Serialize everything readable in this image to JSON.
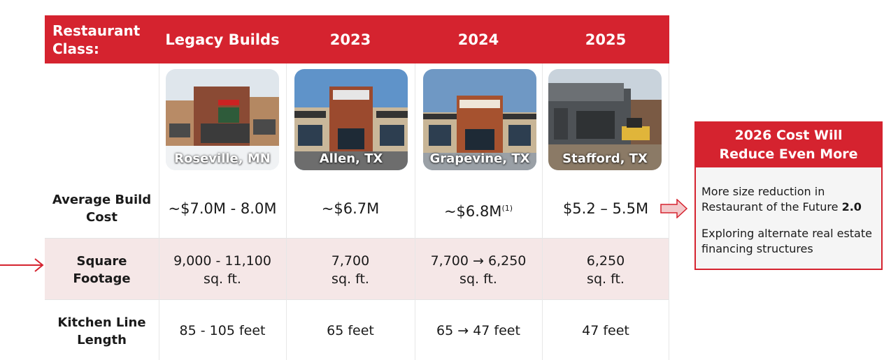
{
  "header": {
    "row_label": "Restaurant Class:",
    "row_label_line1": "Restaurant",
    "row_label_line2": "Class:",
    "columns": [
      "Legacy Builds",
      "2023",
      "2024",
      "2025"
    ]
  },
  "locations": [
    "Roseville, MN",
    "Allen, TX",
    "Grapevine, TX",
    "Stafford, TX"
  ],
  "rows": {
    "build_cost": {
      "label_line1": "Average Build",
      "label_line2": "Cost",
      "values": [
        "~$7.0M - 8.0M",
        "~$6.7M",
        "~$6.8M",
        "$5.2 – 5.5M"
      ],
      "footnote": "(1)"
    },
    "square_footage": {
      "label_line1": "Square",
      "label_line2": "Footage",
      "values_line1": [
        "9,000 - 11,100",
        "7,700",
        "7,700 → 6,250",
        "6,250"
      ],
      "unit": "sq. ft."
    },
    "kitchen_line": {
      "label_line1": "Kitchen Line",
      "label_line2": "Length",
      "values": [
        "85 - 105 feet",
        "65 feet",
        "65 → 47 feet",
        "47 feet"
      ]
    }
  },
  "callout": {
    "title_line1": "2026 Cost Will",
    "title_line2": "Reduce Even More",
    "bullet1_text": "More size reduction in Restaurant of the Future ",
    "bullet1_bold": "2.0",
    "bullet2_text": "Exploring alternate real estate financing structures"
  },
  "colors": {
    "accent": "#d5232f",
    "highlight_band": "#f5e7e7"
  },
  "icons": {
    "left_arrow": "arrow-right-icon",
    "callout_arrow": "block-arrow-right-icon"
  }
}
